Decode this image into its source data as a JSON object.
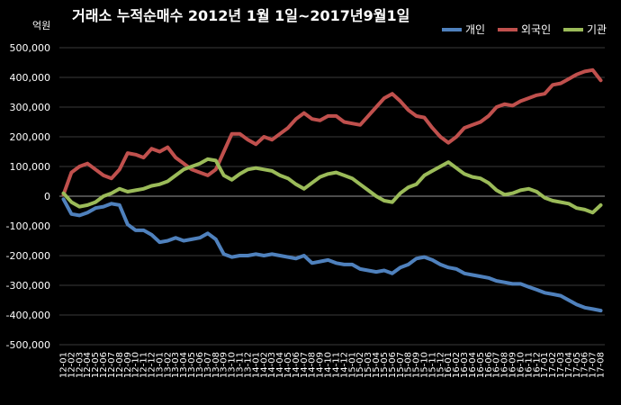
{
  "chart_data": {
    "type": "line",
    "title": "거래소 누적순매수 2012년 1월 1일~2017년9월1일",
    "y_unit_label": "억원",
    "ylim": [
      -500000,
      500000
    ],
    "y_ticks": [
      "500,000",
      "400,000",
      "300,000",
      "200,000",
      "100,000",
      "0",
      "-100,000",
      "-200,000",
      "-300,000",
      "-400,000",
      "-500,000"
    ],
    "y_tick_values": [
      500000,
      400000,
      300000,
      200000,
      100000,
      0,
      -100000,
      -200000,
      -300000,
      -400000,
      -500000
    ],
    "grid": true,
    "legend_position": "top-right",
    "categories": [
      "12-01",
      "12-02",
      "12-03",
      "12-04",
      "12-05",
      "12-06",
      "12-07",
      "12-08",
      "12-09",
      "12-10",
      "12-11",
      "12-12",
      "13-01",
      "13-02",
      "13-03",
      "13-04",
      "13-05",
      "13-06",
      "13-07",
      "13-08",
      "13-09",
      "13-10",
      "13-11",
      "13-12",
      "14-01",
      "14-02",
      "14-03",
      "14-04",
      "14-05",
      "14-06",
      "14-07",
      "14-08",
      "14-09",
      "14-10",
      "14-11",
      "14-12",
      "15-01",
      "15-02",
      "15-03",
      "15-04",
      "15-05",
      "15-06",
      "15-07",
      "15-08",
      "15-09",
      "15-10",
      "15-11",
      "15-12",
      "16-01",
      "16-02",
      "16-03",
      "16-04",
      "16-05",
      "16-06",
      "16-07",
      "16-08",
      "16-09",
      "16-10",
      "16-11",
      "16-12",
      "17-01",
      "17-02",
      "17-03",
      "17-04",
      "17-05",
      "17-06",
      "17-07",
      "17-08"
    ],
    "series": [
      {
        "name": "개인",
        "color": "#4F81BD",
        "values": [
          -10000,
          -60000,
          -65000,
          -55000,
          -40000,
          -35000,
          -25000,
          -30000,
          -95000,
          -115000,
          -115000,
          -130000,
          -155000,
          -150000,
          -140000,
          -150000,
          -145000,
          -140000,
          -125000,
          -145000,
          -195000,
          -205000,
          -200000,
          -200000,
          -195000,
          -200000,
          -195000,
          -200000,
          -205000,
          -210000,
          -200000,
          -225000,
          -220000,
          -215000,
          -225000,
          -230000,
          -230000,
          -245000,
          -250000,
          -255000,
          -250000,
          -260000,
          -240000,
          -230000,
          -210000,
          -205000,
          -215000,
          -230000,
          -240000,
          -245000,
          -260000,
          -265000,
          -270000,
          -275000,
          -285000,
          -290000,
          -295000,
          -295000,
          -305000,
          -315000,
          -325000,
          -330000,
          -335000,
          -350000,
          -365000,
          -375000,
          -380000,
          -385000
        ]
      },
      {
        "name": "외국인",
        "color": "#C0504D",
        "values": [
          5000,
          80000,
          100000,
          110000,
          90000,
          70000,
          60000,
          90000,
          145000,
          140000,
          130000,
          160000,
          150000,
          165000,
          130000,
          110000,
          90000,
          80000,
          70000,
          90000,
          150000,
          210000,
          210000,
          190000,
          175000,
          200000,
          190000,
          210000,
          230000,
          260000,
          280000,
          260000,
          255000,
          270000,
          270000,
          250000,
          245000,
          240000,
          270000,
          300000,
          330000,
          345000,
          320000,
          290000,
          270000,
          265000,
          230000,
          200000,
          180000,
          200000,
          230000,
          240000,
          250000,
          270000,
          300000,
          310000,
          305000,
          320000,
          330000,
          340000,
          345000,
          375000,
          380000,
          395000,
          410000,
          420000,
          425000,
          390000
        ]
      },
      {
        "name": "기관",
        "color": "#9BBB59",
        "values": [
          10000,
          -20000,
          -35000,
          -30000,
          -20000,
          0,
          10000,
          25000,
          15000,
          20000,
          25000,
          35000,
          40000,
          50000,
          70000,
          90000,
          100000,
          110000,
          125000,
          120000,
          70000,
          55000,
          75000,
          90000,
          95000,
          90000,
          85000,
          70000,
          60000,
          40000,
          25000,
          45000,
          65000,
          75000,
          80000,
          70000,
          60000,
          40000,
          20000,
          0,
          -15000,
          -20000,
          10000,
          30000,
          40000,
          70000,
          85000,
          100000,
          115000,
          95000,
          75000,
          65000,
          60000,
          45000,
          20000,
          5000,
          10000,
          20000,
          25000,
          15000,
          -5000,
          -15000,
          -20000,
          -25000,
          -40000,
          -45000,
          -55000,
          -30000
        ]
      }
    ]
  }
}
